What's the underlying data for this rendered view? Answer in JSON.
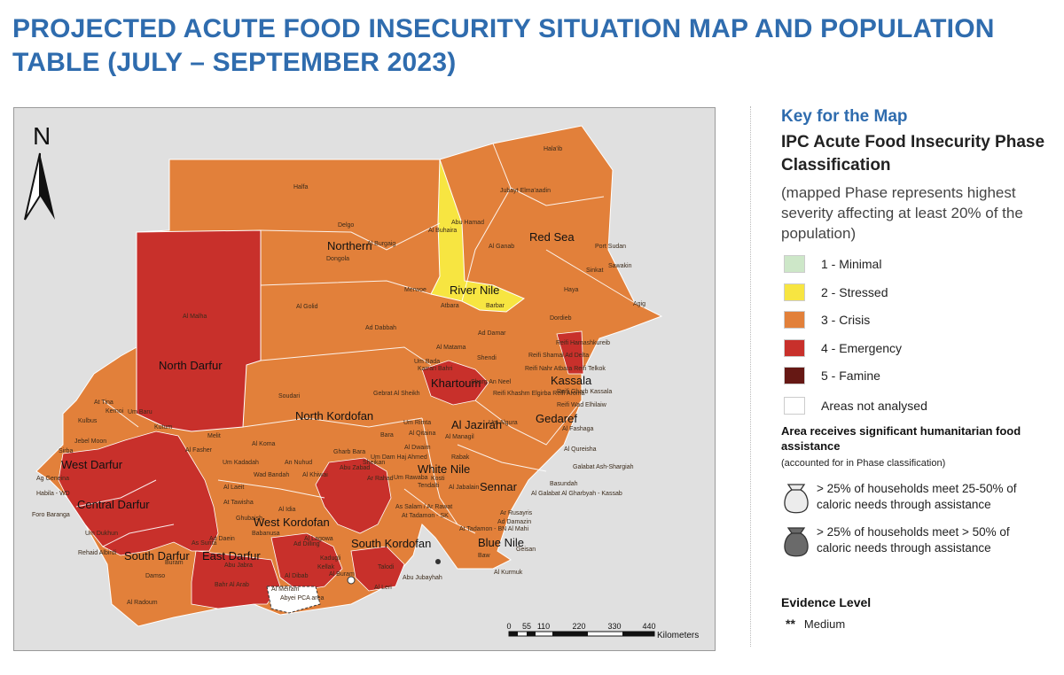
{
  "title": "PROJECTED ACUTE FOOD INSECURITY SITUATION MAP AND POPULATION TABLE (JULY – SEPTEMBER 2023)",
  "map": {
    "north_arrow": "N",
    "states": {
      "northern": "Northern",
      "red_sea": "Red Sea",
      "river_nile": "River Nile",
      "khartoum": "Khartoum",
      "kassala": "Kassala",
      "gedaref": "Gedaref",
      "north_darfur": "North Darfur",
      "west_darfur": "West Darfur",
      "central_darfur": "Central Darfur",
      "south_darfur": "South Darfur",
      "east_darfur": "East Darfur",
      "north_kordofan": "North Kordofan",
      "west_kordofan": "West Kordofan",
      "south_kordofan": "South Kordofan",
      "white_nile": "White Nile",
      "al_jazirah": "Al Jazirah",
      "sennar": "Sennar",
      "blue_nile": "Blue Nile"
    },
    "localities": {
      "halaib": "Hala'ib",
      "halfa": "Halfa",
      "jubayt": "Jubayt Elma'aadin",
      "delgo": "Delgo",
      "abu_hamad": "Abu Hamad",
      "al_buhaira": "Al Buhaira",
      "al_burgaig": "Al Burgaig",
      "dongola": "Dongola",
      "al_ganab": "Al Ganab",
      "port_sudan": "Port Sudan",
      "sawakin": "Sawakin",
      "sinkat": "Sinkat",
      "haya": "Haya",
      "merwoe": "Merwoe",
      "barbar": "Barbar",
      "atbara": "Atbara",
      "al_golid": "Al Golid",
      "dordieb": "Dordieb",
      "agig": "Agig",
      "al_malha": "Al Malha",
      "ad_dabbah": "Ad Dabbah",
      "ad_damar": "Ad Damar",
      "al_matama": "Al Matama",
      "shendi": "Shendi",
      "reifi_hamashkureib": "Reifi Hamashkureib",
      "reifi_shamal": "Reifi Shamal Ad Delta",
      "reifi_telkok": "Reifi Nahr Atbara Reifi Telkok",
      "reifi_aroma": "Reifi Khashm Elgirba Reifi Aroma",
      "reifi_kassala": "Reifi Gharb Kassala",
      "reifi_wad_elhilaiw": "Reifi Wad Elhilaiw",
      "um_bada": "Um Bada",
      "karrari": "Karrari Bahri",
      "sharg_an_neel": "Sharg An Neel",
      "soudari": "Soudari",
      "gebrat": "Gebrat Al Sheikh",
      "tina": "At Tina",
      "kernoi": "Kernoi",
      "um_baru": "Um Baru",
      "kulbus": "Kulbus",
      "jebel_moon": "Jebel Moon",
      "sirba": "Sirba",
      "kutum": "Kutum",
      "melit": "Melit",
      "al_koma": "Al Koma",
      "um_rimta": "Um Rimta",
      "al_qitaina": "Al Qitaina",
      "al_managil": "Al Managil",
      "um_algura": "Um Algura",
      "bara": "Bara",
      "al_fashaga": "Al Fashaga",
      "al_qureisha": "Al Qureisha",
      "galabat_sharg": "Galabat Ash-Shargiah",
      "basundah": "Basundah",
      "galabat_gharb": "Al Galabat Al Gharbyah - Kassab",
      "al_fasher": "Al Fasher",
      "um_kadadah": "Um Kadadah",
      "an_nuhud": "An Nuhud",
      "wad_bandah": "Wad Bandah",
      "al_khiwai": "Al Khiwai",
      "gharb_bara": "Gharb Bara",
      "um_dam": "Um Dam Haj Ahmed",
      "al_dwaim": "Al Dwaim",
      "rabak": "Rabak",
      "sennar_loc": "Sennar",
      "ag_geneina": "Ag Geneina",
      "habila": "Habila - WD",
      "foro_baranga": "Foro Baranga",
      "rehaid": "Rehaid Albirdi",
      "um_dukhun": "Um Dukhun",
      "ad_daein": "Ad Daein",
      "al_laeit": "Al Laeit",
      "at_tawisha": "At Tawisha",
      "ghubaish": "Ghubaish",
      "al_idia": "Al Idia",
      "babanusa": "Babanusa",
      "abu_zabad": "Abu Zabad",
      "ar_rahad": "Ar Rahad",
      "shelkan": "Sheikan",
      "um_rawaba": "Um Rawaba",
      "tendalti": "Tendalti",
      "kosti": "Kosti",
      "al_jabalain": "Al Jabalain",
      "abu_jubayhah": "Abu Jubayhah",
      "talodi": "Talodi",
      "al_buram": "Al Buram",
      "kadugli": "Kadugli",
      "ad_dilling": "Ad Dilling",
      "al_leri": "Al Leri",
      "ar_rusayris": "Ar Rusayris",
      "ad_damazin": "Ad Damazin",
      "geisan": "Geisan",
      "baw": "Baw",
      "al_kurmuk": "Al Kurmuk",
      "damso": "Damso",
      "al_radoum": "Al Radoum",
      "al_dibab": "Al Dibab",
      "abyei": "Abyei PCA area",
      "al_meiram": "Al Meiram",
      "bahr_al_arab": "Bahr Al Arab",
      "abu_jabra": "Abu Jabra",
      "kellak": "Kellak",
      "lagawa": "Al Lagowa",
      "as_sunta": "As Sunta",
      "buram": "Buram",
      "as_salam": "As Salam / Ar Rawat",
      "at_tadamon": "At Tadamon - SK",
      "al_mahi": "At Tadamon - BN Al Mahi"
    },
    "scale": {
      "ticks": [
        "0",
        "55",
        "110",
        "220",
        "330",
        "440"
      ],
      "unit": "Kilometers"
    }
  },
  "key": {
    "heading": "Key for the Map",
    "ipc_title": "IPC Acute Food Insecurity Phase Classification",
    "note": "(mapped Phase represents highest severity affecting at least 20% of the population)",
    "phases": [
      {
        "label": "1 - Minimal",
        "color": "#cde7c8"
      },
      {
        "label": "2 - Stressed",
        "color": "#f7e541"
      },
      {
        "label": "3 - Crisis",
        "color": "#e2803a"
      },
      {
        "label": "4 - Emergency",
        "color": "#c8302b"
      },
      {
        "label": "5 - Famine",
        "color": "#661814"
      },
      {
        "label": "Areas not analysed",
        "color": "#ffffff"
      }
    ],
    "assistance": {
      "title": "Area receives significant humanitarian food assistance",
      "subtitle": "(accounted for in Phase classification)",
      "items": [
        {
          "text": "> 25% of households meet 25-50% of caloric needs through assistance",
          "icon": "light-bag-icon"
        },
        {
          "text": "> 25% of households meet > 50% of caloric needs through assistance",
          "icon": "dark-bag-icon"
        }
      ]
    },
    "evidence": {
      "title": "Evidence Level",
      "stars": "**",
      "label": "Medium"
    }
  }
}
